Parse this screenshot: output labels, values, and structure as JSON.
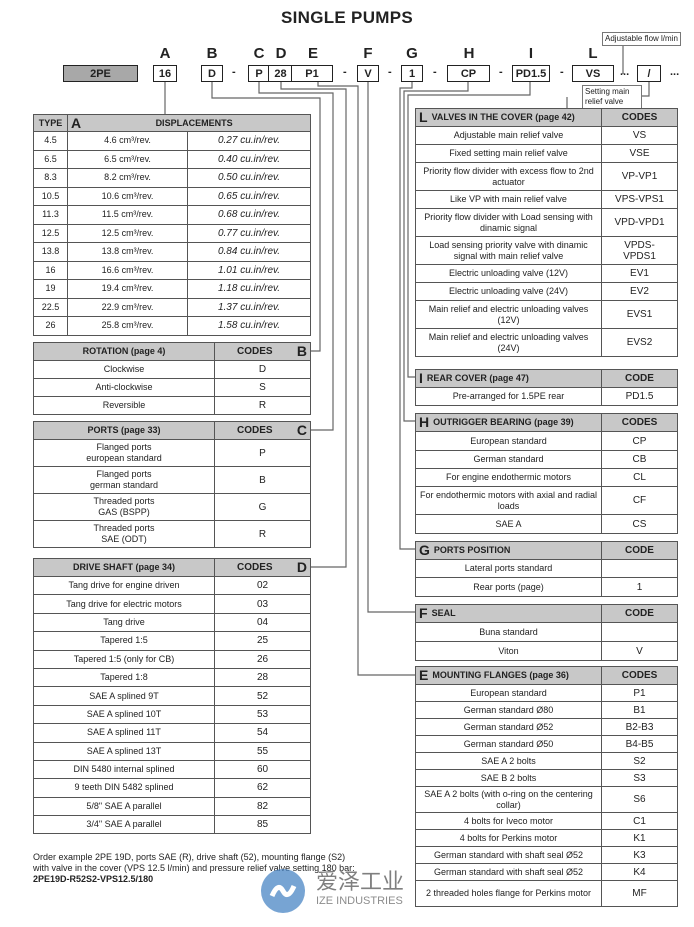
{
  "title": "SINGLE PUMPS",
  "code": {
    "letters": [
      "A",
      "B",
      "C",
      "D",
      "E",
      "F",
      "G",
      "H",
      "I",
      "L"
    ],
    "boxes": {
      "prefix": "2PE",
      "A": "16",
      "B": "D",
      "C": "P",
      "D": "28",
      "E": "P1",
      "F": "V",
      "G": "1",
      "H": "CP",
      "I": "PD1.5",
      "L": "VS",
      "slash": "/"
    },
    "separator": "-",
    "ellipsis": "...",
    "note_flow": "Adjustable flow l/min",
    "note_setting": "Setting main relief valve (bar)"
  },
  "displacements": {
    "letter": "A",
    "headers": [
      "TYPE",
      "DISPLACEMENTS"
    ],
    "rows": [
      [
        "4.5",
        "4.6 cm³/rev.",
        "0.27 cu.in/rev."
      ],
      [
        "6.5",
        "6.5 cm³/rev.",
        "0.40 cu.in/rev."
      ],
      [
        "8.3",
        "8.2 cm³/rev.",
        "0.50 cu.in/rev."
      ],
      [
        "10.5",
        "10.6 cm³/rev.",
        "0.65 cu.in/rev."
      ],
      [
        "11.3",
        "11.5 cm³/rev.",
        "0.68 cu.in/rev."
      ],
      [
        "12.5",
        "12.5 cm³/rev.",
        "0.77 cu.in/rev."
      ],
      [
        "13.8",
        "13.8 cm³/rev.",
        "0.84 cu.in/rev."
      ],
      [
        "16",
        "16.6 cm³/rev.",
        "1.01 cu.in/rev."
      ],
      [
        "19",
        "19.4 cm³/rev.",
        "1.18 cu.in/rev."
      ],
      [
        "22.5",
        "22.9 cm³/rev.",
        "1.37 cu.in/rev."
      ],
      [
        "26",
        "25.8 cm³/rev.",
        "1.58 cu.in/rev."
      ]
    ]
  },
  "rotation": {
    "letter": "B",
    "title": "ROTATION (page 4)",
    "code_header": "CODES",
    "rows": [
      [
        "Clockwise",
        "D"
      ],
      [
        "Anti-clockwise",
        "S"
      ],
      [
        "Reversible",
        "R"
      ]
    ]
  },
  "ports": {
    "letter": "C",
    "title": "PORTS (page 33)",
    "code_header": "CODES",
    "rows": [
      [
        "Flanged ports\neuropean standard",
        "P"
      ],
      [
        "Flanged ports\ngerman standard",
        "B"
      ],
      [
        "Threaded ports\nGAS (BSPP)",
        "G"
      ],
      [
        "Threaded ports\nSAE (ODT)",
        "R"
      ]
    ]
  },
  "drive_shaft": {
    "letter": "D",
    "title": "DRIVE SHAFT (page 34)",
    "code_header": "CODES",
    "rows": [
      [
        "Tang drive for engine driven",
        "02"
      ],
      [
        "Tang drive for electric motors",
        "03"
      ],
      [
        "Tang drive",
        "04"
      ],
      [
        "Tapered 1:5",
        "25"
      ],
      [
        "Tapered 1:5 (only for CB)",
        "26"
      ],
      [
        "Tapered 1:8",
        "28"
      ],
      [
        "SAE A splined 9T",
        "52"
      ],
      [
        "SAE A splined 10T",
        "53"
      ],
      [
        "SAE A splined 11T",
        "54"
      ],
      [
        "SAE A splined 13T",
        "55"
      ],
      [
        "DIN 5480 internal splined",
        "60"
      ],
      [
        "9 teeth DIN 5482 splined",
        "62"
      ],
      [
        "5/8\" SAE A parallel",
        "82"
      ],
      [
        "3/4\" SAE A parallel",
        "85"
      ]
    ]
  },
  "valves_cover": {
    "letter": "L",
    "title": "VALVES IN THE COVER (page 42)",
    "code_header": "CODES",
    "rows": [
      [
        "Adjustable main relief valve",
        "VS"
      ],
      [
        "Fixed setting main relief valve",
        "VSE"
      ],
      [
        "Priority flow divider with excess flow to 2nd actuator",
        "VP-VP1"
      ],
      [
        "Like VP with main relief valve",
        "VPS-VPS1"
      ],
      [
        "Priority flow divider with Load sensing with dinamic signal",
        "VPD-VPD1"
      ],
      [
        "Load sensing priority valve with dinamic signal with main relief valve",
        "VPDS-\nVPDS1"
      ],
      [
        "Electric unloading valve (12V)",
        "EV1"
      ],
      [
        "Electric unloading valve (24V)",
        "EV2"
      ],
      [
        "Main relief and electric unloading valves (12V)",
        "EVS1"
      ],
      [
        "Main relief and electric unloading valves (24V)",
        "EVS2"
      ]
    ]
  },
  "rear_cover": {
    "letter": "I",
    "title": "REAR COVER (page 47)",
    "code_header": "CODE",
    "rows": [
      [
        "Pre-arranged for 1.5PE rear",
        "PD1.5"
      ]
    ]
  },
  "outrigger": {
    "letter": "H",
    "title": "OUTRIGGER BEARING (page 39)",
    "code_header": "CODES",
    "rows": [
      [
        "European standard",
        "CP"
      ],
      [
        "German standard",
        "CB"
      ],
      [
        "For engine endothermic motors",
        "CL"
      ],
      [
        "For endothermic motors with axial and radial loads",
        "CF"
      ],
      [
        "SAE A",
        "CS"
      ]
    ]
  },
  "ports_position": {
    "letter": "G",
    "title": "PORTS POSITION",
    "code_header": "CODE",
    "rows": [
      [
        "Lateral ports standard",
        ""
      ],
      [
        "Rear ports (page)",
        "1"
      ]
    ]
  },
  "seal": {
    "letter": "F",
    "title": "SEAL",
    "code_header": "CODE",
    "rows": [
      [
        "Buna standard",
        ""
      ],
      [
        "Viton",
        "V"
      ]
    ]
  },
  "mounting": {
    "letter": "E",
    "title": "MOUNTING FLANGES (page 36)",
    "code_header": "CODES",
    "rows": [
      [
        "European standard",
        "P1"
      ],
      [
        "German standard Ø80",
        "B1"
      ],
      [
        "German standard Ø52",
        "B2-B3"
      ],
      [
        "German standard Ø50",
        "B4-B5"
      ],
      [
        "SAE A 2 bolts",
        "S2"
      ],
      [
        "SAE B 2 bolts",
        "S3"
      ],
      [
        "SAE A 2 bolts (with o-ring on the centering collar)",
        "S6"
      ],
      [
        "4 bolts for Iveco motor",
        "C1"
      ],
      [
        "4 bolts for Perkins motor",
        "K1"
      ],
      [
        "German standard with shaft seal Ø52",
        "K3"
      ],
      [
        "German standard with shaft seal Ø52",
        "K4"
      ],
      [
        "2 threaded holes flange for Perkins motor",
        "MF"
      ]
    ]
  },
  "order_example": {
    "text": "Order example 2PE 19D, ports SAE (R), drive shaft (52), mounting flange (S2) with valve in the cover (VPS 12.5 l/min) and pressure relief valve setting 180 bar:",
    "code": "2PE19D-R52S2-VPS12.5/180"
  },
  "watermark": {
    "cn": "爱泽工业",
    "en": "IZE INDUSTRIES",
    "color": "#4a86c5"
  }
}
